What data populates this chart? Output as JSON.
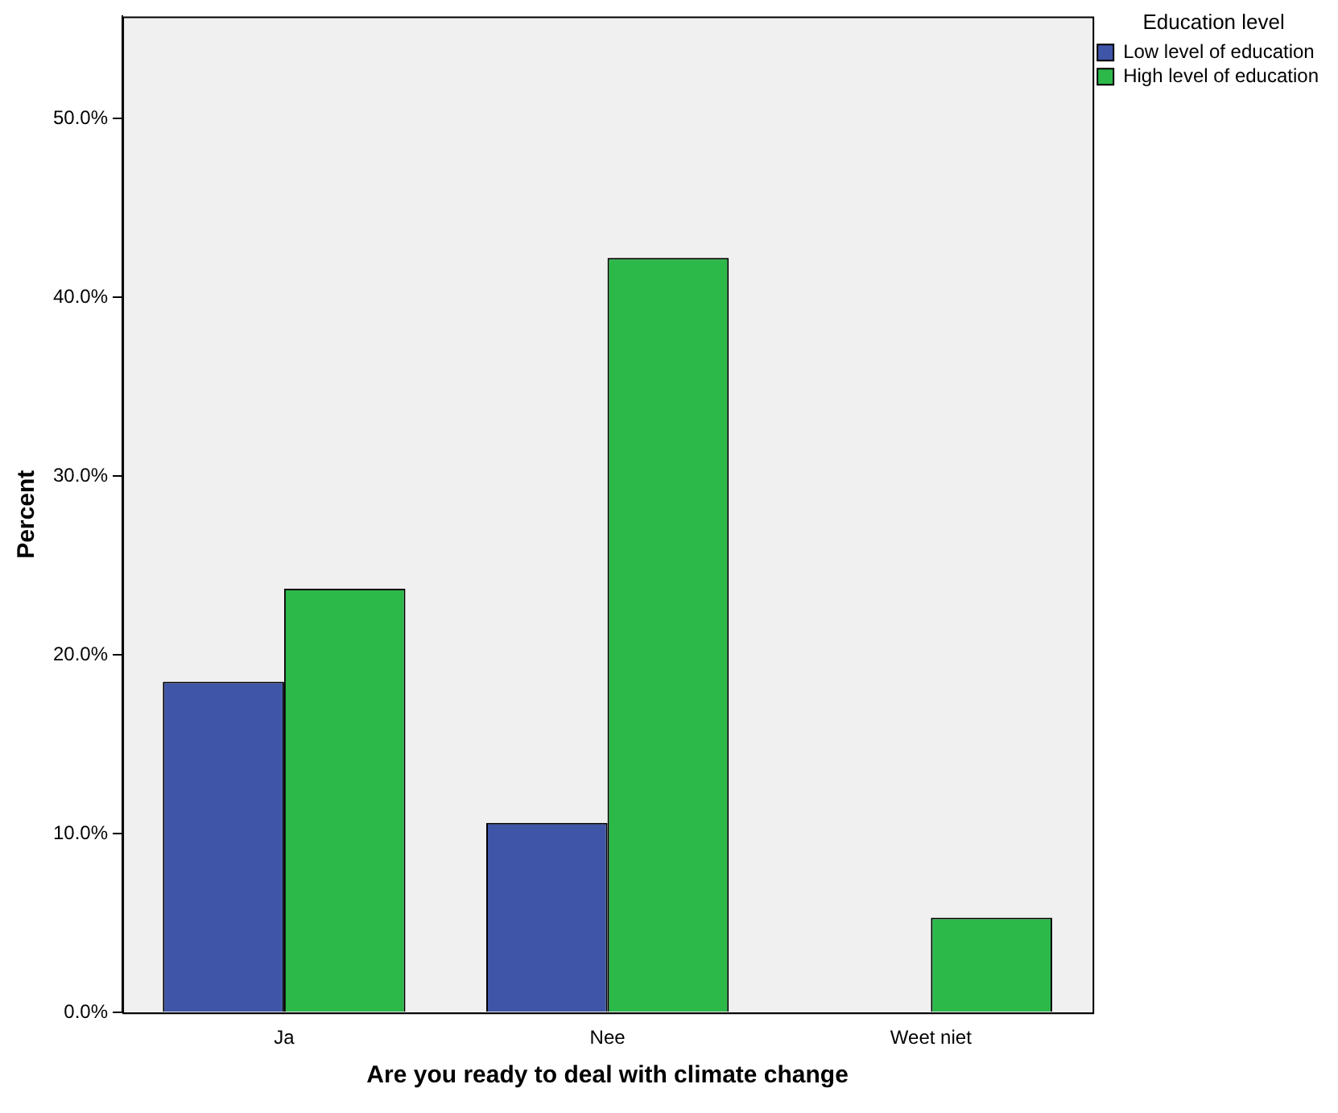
{
  "chart_data": {
    "type": "bar",
    "xlabel": "Are you ready to deal with climate change",
    "ylabel": "Percent",
    "legend_title": "Education level",
    "categories": [
      "Ja",
      "Nee",
      "Weet niet"
    ],
    "series": [
      {
        "name": "Low level of education",
        "color": "#3f55a8",
        "values": [
          18.5,
          10.6,
          null
        ]
      },
      {
        "name": "High level of education",
        "color": "#2db84a",
        "values": [
          23.7,
          42.2,
          5.3
        ]
      }
    ],
    "ylim": [
      0,
      55.7
    ],
    "yticks": [
      {
        "value": 0,
        "label": "0.0%"
      },
      {
        "value": 10,
        "label": "10.0%"
      },
      {
        "value": 20,
        "label": "20.0%"
      },
      {
        "value": 30,
        "label": "30.0%"
      },
      {
        "value": 40,
        "label": "40.0%"
      },
      {
        "value": 50,
        "label": "50.0%"
      }
    ],
    "grid": false,
    "legend": "top right"
  }
}
